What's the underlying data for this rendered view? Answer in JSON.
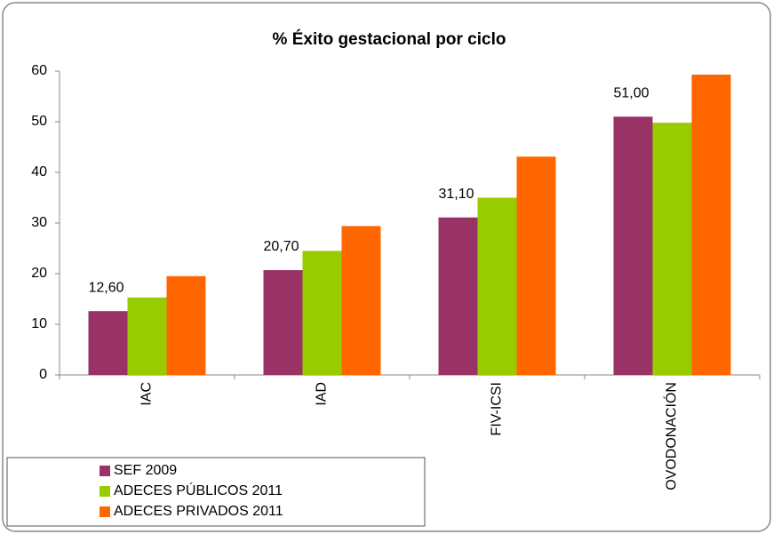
{
  "chart_data": {
    "type": "bar",
    "title": "% Éxito gestacional por ciclo",
    "categories": [
      "IAC",
      "IAD",
      "FIV-ICSI",
      "OVODONACIÓN"
    ],
    "series": [
      {
        "name": "SEF 2009",
        "color": "#993366",
        "values": [
          12.6,
          20.7,
          31.1,
          51.0
        ],
        "value_labels": [
          "12,60",
          "20,70",
          "31,10",
          "51,00"
        ]
      },
      {
        "name": "ADECES PÚBLICOS 2011",
        "color": "#99cc00",
        "values": [
          15.3,
          24.5,
          35,
          49.8
        ]
      },
      {
        "name": "ADECES PRIVADOS 2011",
        "color": "#ff6600",
        "values": [
          19.5,
          29.4,
          43.1,
          59.3
        ]
      }
    ],
    "ylim": [
      0,
      60
    ],
    "yticks": [
      0,
      10,
      20,
      30,
      40,
      50,
      60
    ],
    "grid": false,
    "legend": "bottom-left"
  }
}
